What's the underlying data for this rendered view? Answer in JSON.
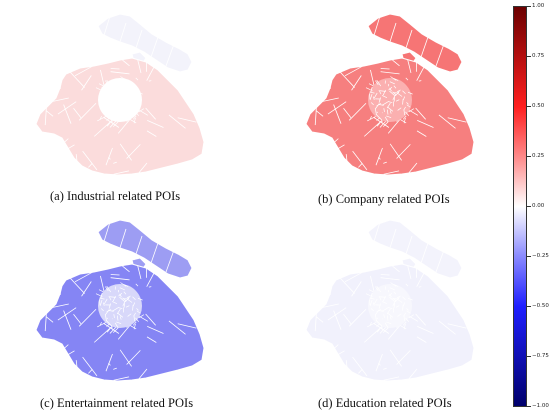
{
  "panels": [
    {
      "id": "a",
      "caption": "(a) Industrial related POIs",
      "fill_main": "#fbdcdc",
      "fill_north": "#f3f3fb",
      "fill_center": "#ffffff"
    },
    {
      "id": "b",
      "caption": "(b) Company related POIs",
      "fill_main": "#f67f7f",
      "fill_north": "#f67575",
      "fill_center": "#fbb0b0"
    },
    {
      "id": "c",
      "caption": "(c) Entertainment related POIs",
      "fill_main": "#8585f4",
      "fill_north": "#9d9df3",
      "fill_center": "#d8d8fa"
    },
    {
      "id": "d",
      "caption": "(d) Education related POIs",
      "fill_main": "#f1f1fc",
      "fill_north": "#f3f3fc",
      "fill_center": "#f7f7fd"
    }
  ],
  "colorbar": {
    "ticks": [
      "1.00",
      "0.75",
      "0.50",
      "0.25",
      "0.00",
      "−0.25",
      "−0.50",
      "−0.75",
      "−1.00"
    ],
    "max": 1.0,
    "min": -1.0,
    "colors": {
      "high": "#6b0000",
      "mid": "#ffffff",
      "low": "#00006b"
    }
  }
}
